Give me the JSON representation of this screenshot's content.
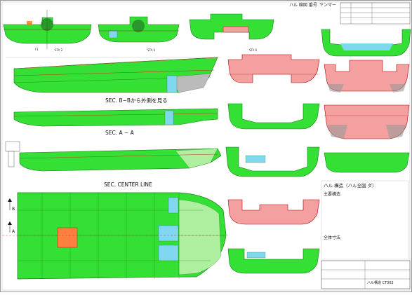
{
  "header": {
    "label": "ハル 線図 番号",
    "logo": "ヤンマー"
  },
  "sections": {
    "b_b": "SEC. B−Bから外側を見る",
    "a_a": "SEC. A − A",
    "centerline": "SEC. CENTER LINE"
  },
  "markers": {
    "a": "A",
    "b": "B"
  },
  "info": {
    "title": "ハル 構造（ハル全図 ダ）",
    "subtitle": "主要構造",
    "general_heading": "全体寸法"
  },
  "title_block": {
    "drawing_no": "ハル構造 CT302"
  },
  "colors": {
    "hull": "#35e035",
    "hull_light": "#aef0a0",
    "tank_pink": "#f4a0a0",
    "tank_blue": "#7fd8f0",
    "engine": "#ff7f3f",
    "frame": "#c0392b"
  }
}
